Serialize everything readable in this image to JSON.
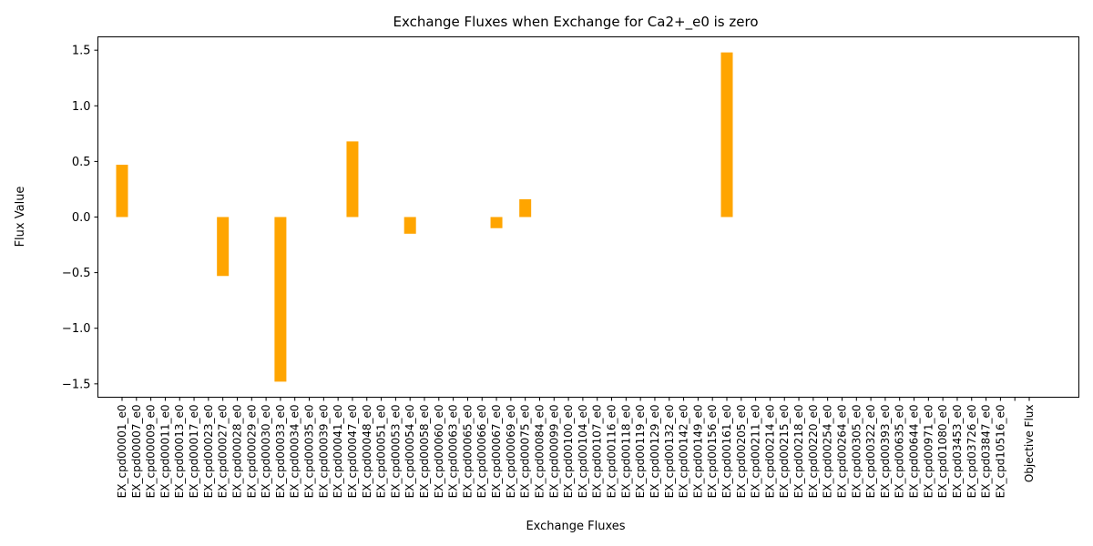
{
  "chart_data": {
    "type": "bar",
    "title": "Exchange Fluxes when Exchange for Ca2+_e0 is zero",
    "xlabel": "Exchange Fluxes",
    "ylabel": "Flux Value",
    "ylim": [
      -1.62,
      1.62
    ],
    "yticks": [
      -1.5,
      -1.0,
      -0.5,
      0.0,
      0.5,
      1.0,
      1.5
    ],
    "ytick_labels": [
      "−1.5",
      "−1.0",
      "−0.5",
      "0.0",
      "0.5",
      "1.0",
      "1.5"
    ],
    "bar_color": "#FFA500",
    "grid": false,
    "categories": [
      "EX_cpd00001_e0",
      "EX_cpd00007_e0",
      "EX_cpd00009_e0",
      "EX_cpd00011_e0",
      "EX_cpd00013_e0",
      "EX_cpd00017_e0",
      "EX_cpd00023_e0",
      "EX_cpd00027_e0",
      "EX_cpd00028_e0",
      "EX_cpd00029_e0",
      "EX_cpd00030_e0",
      "EX_cpd00033_e0",
      "EX_cpd00034_e0",
      "EX_cpd00035_e0",
      "EX_cpd00039_e0",
      "EX_cpd00041_e0",
      "EX_cpd00047_e0",
      "EX_cpd00048_e0",
      "EX_cpd00051_e0",
      "EX_cpd00053_e0",
      "EX_cpd00054_e0",
      "EX_cpd00058_e0",
      "EX_cpd00060_e0",
      "EX_cpd00063_e0",
      "EX_cpd00065_e0",
      "EX_cpd00066_e0",
      "EX_cpd00067_e0",
      "EX_cpd00069_e0",
      "EX_cpd00075_e0",
      "EX_cpd00084_e0",
      "EX_cpd00099_e0",
      "EX_cpd00100_e0",
      "EX_cpd00104_e0",
      "EX_cpd00107_e0",
      "EX_cpd00116_e0",
      "EX_cpd00118_e0",
      "EX_cpd00119_e0",
      "EX_cpd00129_e0",
      "EX_cpd00132_e0",
      "EX_cpd00142_e0",
      "EX_cpd00149_e0",
      "EX_cpd00156_e0",
      "EX_cpd00161_e0",
      "EX_cpd00205_e0",
      "EX_cpd00211_e0",
      "EX_cpd00214_e0",
      "EX_cpd00215_e0",
      "EX_cpd00218_e0",
      "EX_cpd00220_e0",
      "EX_cpd00254_e0",
      "EX_cpd00264_e0",
      "EX_cpd00305_e0",
      "EX_cpd00322_e0",
      "EX_cpd00393_e0",
      "EX_cpd00635_e0",
      "EX_cpd00644_e0",
      "EX_cpd00971_e0",
      "EX_cpd01080_e0",
      "EX_cpd03453_e0",
      "EX_cpd03726_e0",
      "EX_cpd03847_e0",
      "EX_cpd10516_e0",
      "",
      "Objective Flux"
    ],
    "values": [
      0.47,
      0,
      0,
      0,
      0,
      0,
      0,
      -0.53,
      0,
      0,
      0,
      -1.48,
      0,
      0,
      0,
      0,
      0.68,
      0,
      0,
      0,
      -0.15,
      0,
      0,
      0,
      0,
      0,
      -0.1,
      0,
      0.16,
      0,
      0,
      0,
      0,
      0,
      0,
      0,
      0,
      0,
      0,
      0,
      0,
      0,
      1.48,
      0,
      0,
      0,
      0,
      0,
      0,
      0,
      0,
      0,
      0,
      0,
      0,
      0,
      0,
      0,
      0,
      0,
      0,
      0,
      0,
      0
    ]
  }
}
